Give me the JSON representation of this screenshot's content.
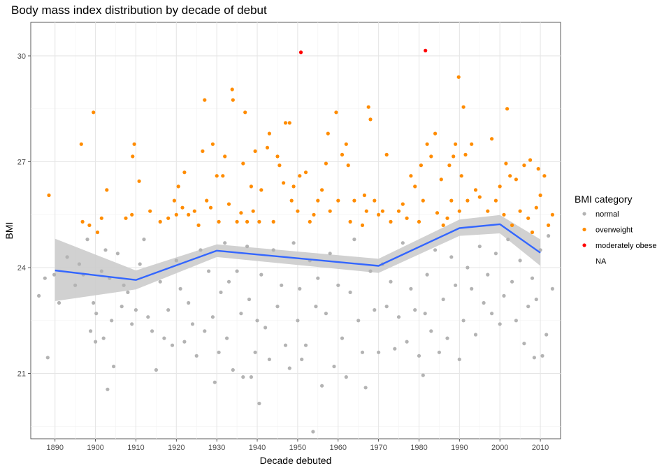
{
  "chart_data": {
    "type": "scatter",
    "title": "Body mass index distribution by decade of debut",
    "xlabel": "Decade debuted",
    "ylabel": "BMI",
    "xlim": [
      1884,
      2015
    ],
    "ylim": [
      19.15,
      30.95
    ],
    "x_ticks": [
      1890,
      1900,
      1910,
      1920,
      1930,
      1940,
      1950,
      1960,
      1970,
      1980,
      1990,
      2000,
      2010
    ],
    "y_ticks": [
      21,
      24,
      27,
      30
    ],
    "grid": true,
    "legend": {
      "title": "BMI category",
      "placement": "right",
      "entries": [
        {
          "label": "normal",
          "color": "#b3b3b3"
        },
        {
          "label": "overweight",
          "color": "#ff8c00"
        },
        {
          "label": "moderately obese",
          "color": "#ff0000"
        },
        {
          "label": "NA",
          "color": ""
        }
      ]
    },
    "trend": {
      "name": "",
      "color": "#3366ff",
      "band_color": "#cccccc",
      "x": [
        1890,
        1910,
        1930,
        1970,
        1990,
        2000,
        2010
      ],
      "y": [
        23.92,
        23.65,
        24.48,
        24.05,
        25.12,
        25.23,
        24.42
      ],
      "band_lower": [
        23.05,
        23.38,
        24.3,
        23.85,
        24.9,
        24.97,
        24.05
      ],
      "band_upper": [
        24.82,
        23.92,
        24.66,
        24.25,
        25.36,
        25.49,
        24.8
      ]
    },
    "series": [
      {
        "name": "moderately obese",
        "color": "#ff0000",
        "points": [
          [
            1950.8,
            30.1
          ],
          [
            1981.6,
            30.15
          ]
        ]
      },
      {
        "name": "overweight",
        "color": "#ff8c00",
        "points": [
          [
            1888.5,
            26.05
          ],
          [
            1896.5,
            27.5
          ],
          [
            1896.8,
            25.3
          ],
          [
            1898.5,
            25.2
          ],
          [
            1899.5,
            28.4
          ],
          [
            1900.5,
            25.0
          ],
          [
            1901.5,
            25.4
          ],
          [
            1902.8,
            26.2
          ],
          [
            1907.5,
            25.4
          ],
          [
            1909.0,
            25.5
          ],
          [
            1909.2,
            27.15
          ],
          [
            1909.6,
            27.5
          ],
          [
            1910.8,
            26.45
          ],
          [
            1913.5,
            25.6
          ],
          [
            1916.0,
            25.3
          ],
          [
            1918.0,
            25.4
          ],
          [
            1919.5,
            25.9
          ],
          [
            1920.0,
            25.5
          ],
          [
            1920.5,
            26.3
          ],
          [
            1921.5,
            25.7
          ],
          [
            1922.0,
            26.7
          ],
          [
            1923.0,
            25.5
          ],
          [
            1924.5,
            25.6
          ],
          [
            1925.5,
            25.2
          ],
          [
            1926.5,
            27.3
          ],
          [
            1927.0,
            28.75
          ],
          [
            1927.5,
            25.9
          ],
          [
            1928.5,
            25.7
          ],
          [
            1929.0,
            27.5
          ],
          [
            1930.0,
            26.6
          ],
          [
            1930.5,
            25.3
          ],
          [
            1931.5,
            26.6
          ],
          [
            1932.0,
            27.15
          ],
          [
            1933.0,
            25.8
          ],
          [
            1933.8,
            29.05
          ],
          [
            1934.0,
            28.75
          ],
          [
            1935.0,
            25.3
          ],
          [
            1936.0,
            25.55
          ],
          [
            1936.5,
            26.95
          ],
          [
            1937.0,
            28.4
          ],
          [
            1937.5,
            25.3
          ],
          [
            1938.5,
            26.3
          ],
          [
            1939.0,
            25.6
          ],
          [
            1939.5,
            27.3
          ],
          [
            1940.5,
            25.3
          ],
          [
            1941.0,
            26.2
          ],
          [
            1942.5,
            27.4
          ],
          [
            1943.0,
            27.8
          ],
          [
            1944.0,
            25.3
          ],
          [
            1945.0,
            27.15
          ],
          [
            1945.5,
            26.9
          ],
          [
            1946.5,
            26.4
          ],
          [
            1947.0,
            28.1
          ],
          [
            1948.0,
            28.1
          ],
          [
            1948.5,
            25.9
          ],
          [
            1949.0,
            26.3
          ],
          [
            1950.0,
            25.6
          ],
          [
            1950.5,
            26.6
          ],
          [
            1952.0,
            26.7
          ],
          [
            1953.0,
            25.3
          ],
          [
            1954.0,
            25.5
          ],
          [
            1955.0,
            25.9
          ],
          [
            1956.0,
            26.2
          ],
          [
            1957.0,
            26.95
          ],
          [
            1957.5,
            27.8
          ],
          [
            1958.0,
            25.6
          ],
          [
            1959.5,
            28.4
          ],
          [
            1960.0,
            25.9
          ],
          [
            1961.0,
            27.2
          ],
          [
            1962.0,
            27.5
          ],
          [
            1962.5,
            26.9
          ],
          [
            1963.0,
            25.3
          ],
          [
            1964.0,
            25.9
          ],
          [
            1966.0,
            25.2
          ],
          [
            1966.5,
            26.05
          ],
          [
            1967.0,
            25.6
          ],
          [
            1967.5,
            28.55
          ],
          [
            1968.0,
            28.2
          ],
          [
            1969.0,
            25.9
          ],
          [
            1970.0,
            25.5
          ],
          [
            1971.0,
            25.6
          ],
          [
            1972.0,
            27.2
          ],
          [
            1973.0,
            25.3
          ],
          [
            1975.0,
            25.6
          ],
          [
            1976.0,
            25.8
          ],
          [
            1977.0,
            25.4
          ],
          [
            1978.0,
            26.6
          ],
          [
            1979.0,
            26.3
          ],
          [
            1980.0,
            25.3
          ],
          [
            1980.5,
            26.9
          ],
          [
            1981.0,
            25.9
          ],
          [
            1982.0,
            27.5
          ],
          [
            1983.0,
            27.15
          ],
          [
            1984.0,
            27.8
          ],
          [
            1984.5,
            25.55
          ],
          [
            1985.5,
            26.5
          ],
          [
            1986.0,
            25.2
          ],
          [
            1987.0,
            25.4
          ],
          [
            1987.5,
            26.9
          ],
          [
            1988.0,
            25.9
          ],
          [
            1988.5,
            27.15
          ],
          [
            1989.0,
            27.5
          ],
          [
            1989.8,
            29.4
          ],
          [
            1990.0,
            25.6
          ],
          [
            1990.5,
            26.6
          ],
          [
            1991.0,
            28.55
          ],
          [
            1991.5,
            27.2
          ],
          [
            1992.0,
            25.9
          ],
          [
            1993.0,
            27.5
          ],
          [
            1994.0,
            26.2
          ],
          [
            1995.0,
            26.0
          ],
          [
            1997.0,
            25.6
          ],
          [
            1998.0,
            27.65
          ],
          [
            1999.0,
            25.9
          ],
          [
            2000.0,
            26.3
          ],
          [
            2001.0,
            25.5
          ],
          [
            2001.5,
            26.95
          ],
          [
            2001.8,
            28.5
          ],
          [
            2002.5,
            26.6
          ],
          [
            2003.0,
            25.2
          ],
          [
            2004.0,
            26.5
          ],
          [
            2005.0,
            25.6
          ],
          [
            2006.0,
            26.9
          ],
          [
            2007.0,
            25.4
          ],
          [
            2007.5,
            27.05
          ],
          [
            2008.0,
            25.0
          ],
          [
            2009.0,
            25.7
          ],
          [
            2009.5,
            26.8
          ],
          [
            2010.0,
            26.05
          ],
          [
            2011.0,
            26.6
          ],
          [
            2012.0,
            25.2
          ],
          [
            2013.0,
            25.5
          ]
        ]
      },
      {
        "name": "normal",
        "color": "#b3b3b3",
        "points": [
          [
            1886.0,
            23.2
          ],
          [
            1887.5,
            23.7
          ],
          [
            1888.2,
            21.45
          ],
          [
            1889.8,
            23.8
          ],
          [
            1891.0,
            23.0
          ],
          [
            1893.0,
            24.3
          ],
          [
            1895.0,
            23.5
          ],
          [
            1896.0,
            24.1
          ],
          [
            1897.0,
            23.8
          ],
          [
            1898.0,
            24.8
          ],
          [
            1898.8,
            22.2
          ],
          [
            1899.5,
            23.0
          ],
          [
            1900.0,
            21.9
          ],
          [
            1900.2,
            22.7
          ],
          [
            1901.5,
            23.9
          ],
          [
            1902.0,
            22.0
          ],
          [
            1902.5,
            24.5
          ],
          [
            1903.0,
            20.55
          ],
          [
            1903.5,
            23.7
          ],
          [
            1904.0,
            22.5
          ],
          [
            1904.5,
            21.2
          ],
          [
            1905.5,
            24.4
          ],
          [
            1906.5,
            22.9
          ],
          [
            1907.0,
            23.5
          ],
          [
            1908.0,
            23.3
          ],
          [
            1909.0,
            22.4
          ],
          [
            1910.0,
            22.8
          ],
          [
            1911.0,
            24.1
          ],
          [
            1912.0,
            24.8
          ],
          [
            1913.0,
            22.6
          ],
          [
            1914.0,
            22.2
          ],
          [
            1915.0,
            21.1
          ],
          [
            1916.0,
            23.6
          ],
          [
            1917.0,
            22.0
          ],
          [
            1918.0,
            22.8
          ],
          [
            1919.0,
            21.8
          ],
          [
            1920.0,
            24.2
          ],
          [
            1921.0,
            23.4
          ],
          [
            1922.0,
            21.9
          ],
          [
            1923.0,
            23.0
          ],
          [
            1924.0,
            22.4
          ],
          [
            1925.0,
            21.5
          ],
          [
            1926.0,
            24.5
          ],
          [
            1927.0,
            22.2
          ],
          [
            1928.0,
            23.9
          ],
          [
            1929.0,
            22.6
          ],
          [
            1929.5,
            20.75
          ],
          [
            1930.5,
            21.6
          ],
          [
            1931.0,
            23.3
          ],
          [
            1932.0,
            24.7
          ],
          [
            1932.5,
            22.0
          ],
          [
            1933.0,
            23.6
          ],
          [
            1934.0,
            21.1
          ],
          [
            1935.0,
            23.9
          ],
          [
            1936.0,
            22.7
          ],
          [
            1936.5,
            20.9
          ],
          [
            1937.5,
            24.6
          ],
          [
            1938.0,
            23.1
          ],
          [
            1938.5,
            20.9
          ],
          [
            1939.5,
            21.6
          ],
          [
            1940.0,
            22.5
          ],
          [
            1940.5,
            20.15
          ],
          [
            1941.0,
            23.8
          ],
          [
            1942.0,
            22.3
          ],
          [
            1943.0,
            21.4
          ],
          [
            1944.0,
            24.5
          ],
          [
            1945.0,
            22.9
          ],
          [
            1946.0,
            23.5
          ],
          [
            1947.0,
            21.8
          ],
          [
            1948.0,
            21.15
          ],
          [
            1949.0,
            24.7
          ],
          [
            1950.0,
            22.5
          ],
          [
            1950.5,
            23.4
          ],
          [
            1951.0,
            21.4
          ],
          [
            1952.0,
            21.8
          ],
          [
            1953.0,
            24.2
          ],
          [
            1953.8,
            19.35
          ],
          [
            1954.5,
            22.9
          ],
          [
            1955.0,
            23.7
          ],
          [
            1956.0,
            20.65
          ],
          [
            1957.0,
            22.7
          ],
          [
            1958.0,
            24.4
          ],
          [
            1959.0,
            21.2
          ],
          [
            1960.0,
            23.5
          ],
          [
            1961.0,
            22.0
          ],
          [
            1962.0,
            20.9
          ],
          [
            1963.0,
            23.3
          ],
          [
            1964.0,
            24.8
          ],
          [
            1965.0,
            22.5
          ],
          [
            1966.0,
            21.6
          ],
          [
            1966.8,
            20.6
          ],
          [
            1968.0,
            23.9
          ],
          [
            1969.0,
            22.8
          ],
          [
            1970.0,
            21.6
          ],
          [
            1971.0,
            24.1
          ],
          [
            1972.0,
            22.9
          ],
          [
            1973.0,
            23.6
          ],
          [
            1974.0,
            21.7
          ],
          [
            1975.0,
            22.6
          ],
          [
            1976.0,
            24.7
          ],
          [
            1977.0,
            21.9
          ],
          [
            1978.0,
            23.4
          ],
          [
            1979.0,
            22.8
          ],
          [
            1980.0,
            21.5
          ],
          [
            1981.0,
            20.95
          ],
          [
            1981.5,
            22.7
          ],
          [
            1982.0,
            23.8
          ],
          [
            1983.0,
            22.2
          ],
          [
            1984.0,
            24.5
          ],
          [
            1985.0,
            21.6
          ],
          [
            1986.0,
            23.1
          ],
          [
            1987.0,
            22.0
          ],
          [
            1988.0,
            24.3
          ],
          [
            1989.0,
            23.5
          ],
          [
            1990.0,
            21.4
          ],
          [
            1991.0,
            22.5
          ],
          [
            1992.0,
            24.0
          ],
          [
            1993.0,
            23.4
          ],
          [
            1994.0,
            22.1
          ],
          [
            1995.0,
            24.6
          ],
          [
            1996.0,
            23.0
          ],
          [
            1997.0,
            23.8
          ],
          [
            1998.0,
            22.7
          ],
          [
            1999.0,
            24.4
          ],
          [
            2000.0,
            22.4
          ],
          [
            2001.0,
            23.2
          ],
          [
            2002.0,
            24.8
          ],
          [
            2003.0,
            23.6
          ],
          [
            2004.0,
            22.5
          ],
          [
            2005.0,
            24.2
          ],
          [
            2006.0,
            21.85
          ],
          [
            2007.0,
            22.9
          ],
          [
            2008.0,
            23.7
          ],
          [
            2008.5,
            21.45
          ],
          [
            2009.0,
            23.1
          ],
          [
            2010.0,
            24.5
          ],
          [
            2010.5,
            21.5
          ],
          [
            2011.5,
            22.1
          ],
          [
            2012.0,
            24.9
          ],
          [
            2013.0,
            23.4
          ]
        ]
      }
    ]
  }
}
